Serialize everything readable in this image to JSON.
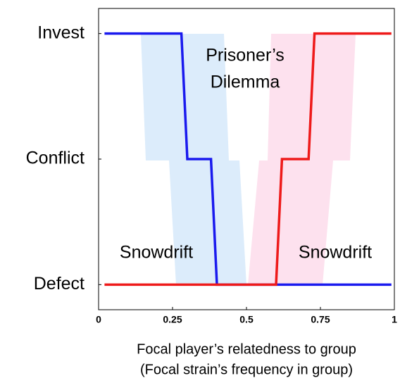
{
  "chart_data": {
    "type": "line",
    "xlim": [
      0,
      1
    ],
    "xticks": [
      0,
      0.25,
      0.5,
      0.75,
      1
    ],
    "ylim": [
      -0.2,
      2.2
    ],
    "yticks": [
      {
        "value": 0,
        "label": "Defect"
      },
      {
        "value": 1,
        "label": "Conflict"
      },
      {
        "value": 2,
        "label": "Invest"
      }
    ],
    "xlabel": [
      "Focal player’s relatedness to group",
      "(Focal strain’s frequency in group)"
    ],
    "annotations": [
      "Prisoner’s",
      "Dilemma",
      "Snowdrift",
      "Snowdrift"
    ],
    "grid": false,
    "series": [
      {
        "color": "#1a1aee",
        "x": [
          0.02,
          0.28,
          0.3,
          0.38,
          0.4,
          0.99
        ],
        "values": [
          2,
          2,
          1,
          1,
          0,
          0
        ]
      },
      {
        "color": "#ee1a1a",
        "x": [
          0.02,
          0.6,
          0.62,
          0.71,
          0.73,
          0.99
        ],
        "values": [
          0,
          0,
          1,
          1,
          2,
          2
        ]
      }
    ]
  }
}
